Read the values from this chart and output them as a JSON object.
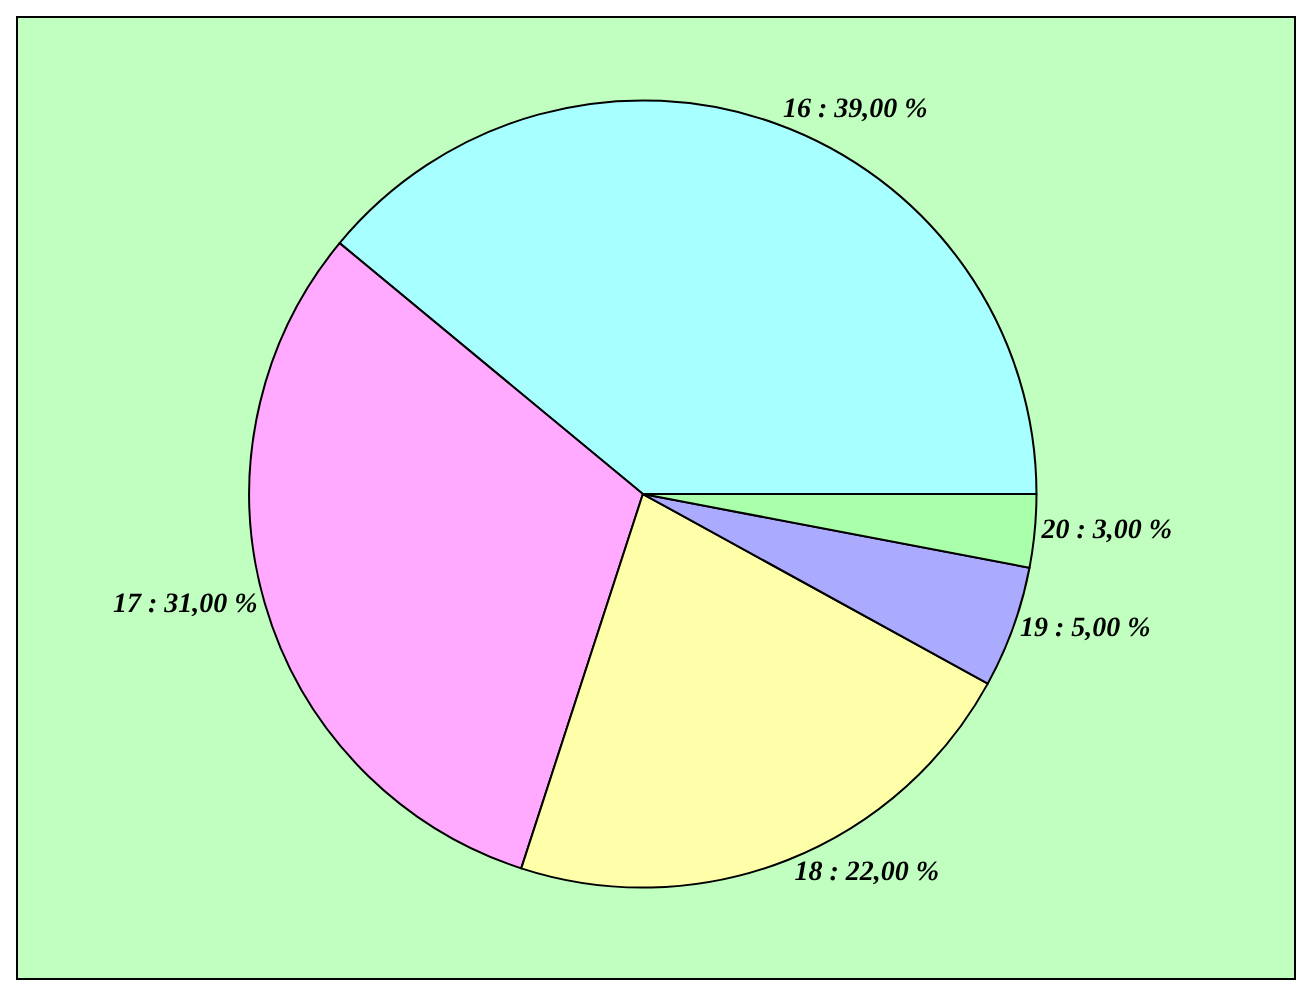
{
  "chart_data": {
    "type": "pie",
    "categories": [
      "16",
      "17",
      "18",
      "19",
      "20"
    ],
    "values": [
      39,
      31,
      22,
      5,
      3
    ],
    "colors": [
      "#a8ffff",
      "#ffaaff",
      "#ffffaa",
      "#aaaaff",
      "#aaffaa"
    ],
    "value_labels": [
      "39,00 %",
      "31,00 %",
      "22,00 %",
      "5,00 %",
      "3,00 %"
    ],
    "legend": false
  }
}
